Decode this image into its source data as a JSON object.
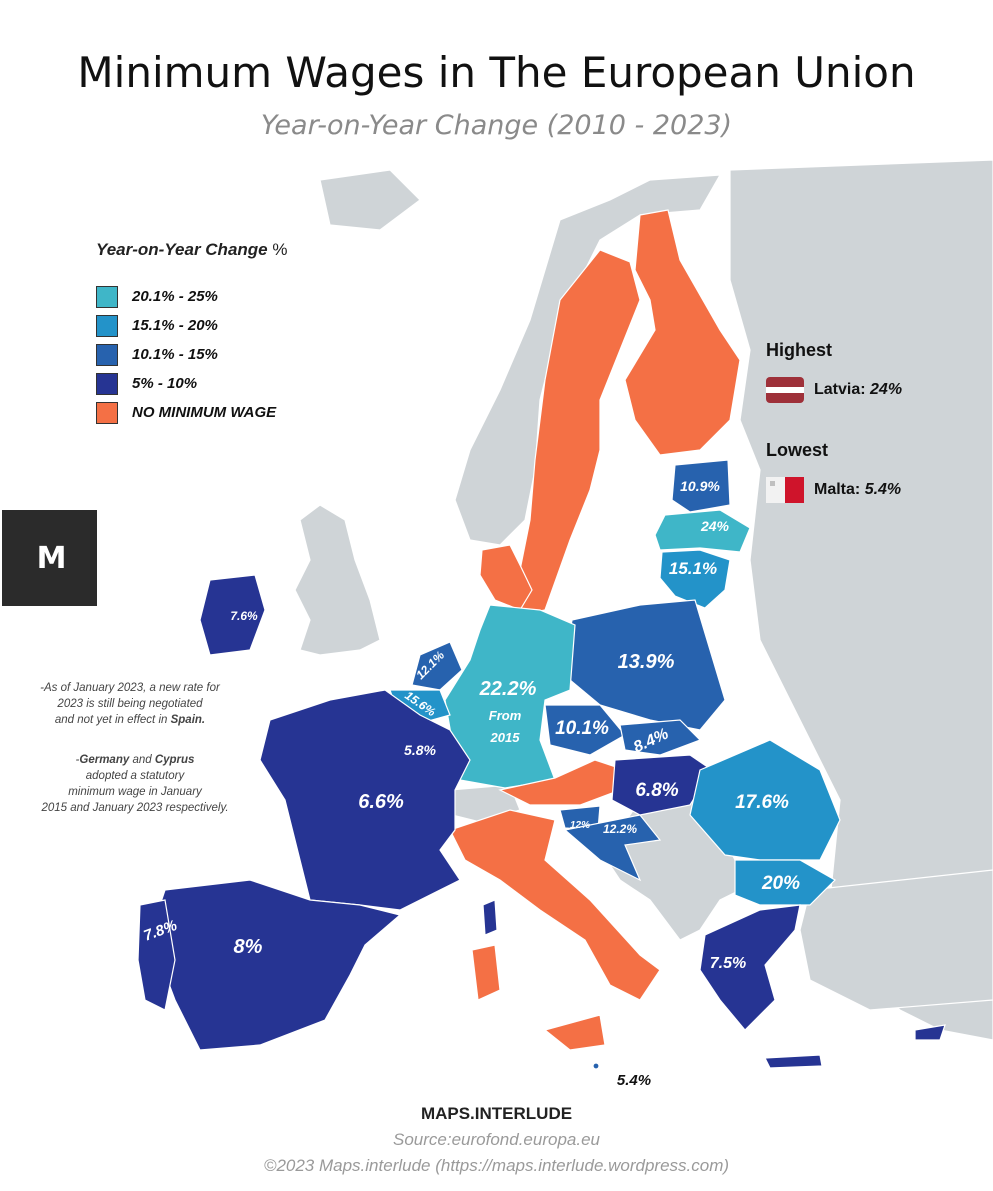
{
  "title": "Minimum Wages in The European Union",
  "subtitle": "Year-on-Year Change (2010 - 2023)",
  "legend": {
    "title": "Year-on-Year Change",
    "title_symbol": "%",
    "items": [
      {
        "label": "20.1% - 25%",
        "color": "#3fb6c8"
      },
      {
        "label": "15.1% - 20%",
        "color": "#2393c9"
      },
      {
        "label": "10.1% - 15%",
        "color": "#2762ae"
      },
      {
        "label": "5% - 10%",
        "color": "#263493"
      },
      {
        "label": "NO MINIMUM WAGE",
        "color": "#f47045"
      }
    ]
  },
  "logo_text": "M",
  "notes": {
    "spain": [
      "-As of January 2023, a new rate for",
      "2023 is still being negotiated",
      "and not yet in effect in",
      "Spain."
    ],
    "germany": [
      "-",
      "Germany",
      " and ",
      "Cyprus",
      "adopted a statutory",
      "minimum wage in January",
      "2015 and January 2023 respectively."
    ]
  },
  "highest": {
    "title": "Highest",
    "country": "Latvia:",
    "value": "24%"
  },
  "lowest": {
    "title": "Lowest",
    "country": "Malta:",
    "value": "5.4%"
  },
  "countries": {
    "latvia": "24%",
    "estonia": "10.9%",
    "lithuania": "15.1%",
    "poland": "13.9%",
    "germany": "22.2%",
    "germany_note1": "From",
    "germany_note2": "2015",
    "netherlands": "12.1%",
    "belgium": "15.6%",
    "luxembourg": "5.8%",
    "czechia": "10.1%",
    "slovakia": "8.4%",
    "hungary": "6.8%",
    "slovenia": "12%",
    "croatia": "12.2%",
    "romania": "17.6%",
    "bulgaria": "20%",
    "france": "6.6%",
    "spain": "8%",
    "portugal": "7.8%",
    "ireland": "7.6%",
    "greece": "7.5%",
    "malta": "5.4%"
  },
  "footer": {
    "brand": "MAPS.INTERLUDE",
    "source": "Source:eurofond.europa.eu",
    "copyright": "©2023 Maps.interlude (https://maps.interlude.wordpress.com)"
  }
}
